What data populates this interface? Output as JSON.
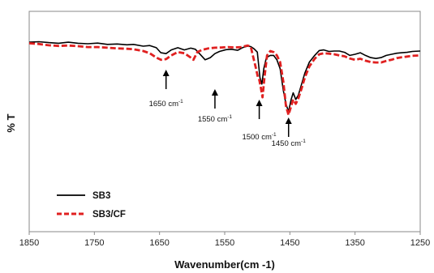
{
  "chart_data": {
    "type": "line",
    "title": "",
    "xlabel": "Wavenumber(cm -1)",
    "ylabel": "% T",
    "xlim": [
      1850,
      1250
    ],
    "x_reversed": true,
    "x_ticks": [
      1850,
      1750,
      1650,
      1550,
      1450,
      1350,
      1250
    ],
    "y_ticks_shown": false,
    "legend_position": "bottom-left",
    "series": [
      {
        "name": "SB3",
        "color": "#000000",
        "style": "solid",
        "points": [
          [
            1850,
            0.86
          ],
          [
            1835,
            0.862
          ],
          [
            1820,
            0.858
          ],
          [
            1805,
            0.855
          ],
          [
            1790,
            0.86
          ],
          [
            1775,
            0.855
          ],
          [
            1760,
            0.853
          ],
          [
            1745,
            0.856
          ],
          [
            1730,
            0.85
          ],
          [
            1715,
            0.852
          ],
          [
            1700,
            0.848
          ],
          [
            1690,
            0.85
          ],
          [
            1675,
            0.842
          ],
          [
            1665,
            0.845
          ],
          [
            1655,
            0.835
          ],
          [
            1648,
            0.812
          ],
          [
            1640,
            0.808
          ],
          [
            1632,
            0.825
          ],
          [
            1622,
            0.835
          ],
          [
            1612,
            0.825
          ],
          [
            1602,
            0.833
          ],
          [
            1595,
            0.828
          ],
          [
            1588,
            0.806
          ],
          [
            1580,
            0.78
          ],
          [
            1572,
            0.79
          ],
          [
            1565,
            0.808
          ],
          [
            1558,
            0.818
          ],
          [
            1548,
            0.826
          ],
          [
            1540,
            0.828
          ],
          [
            1530,
            0.823
          ],
          [
            1522,
            0.836
          ],
          [
            1515,
            0.842
          ],
          [
            1510,
            0.84
          ],
          [
            1505,
            0.83
          ],
          [
            1500,
            0.815
          ],
          [
            1496,
            0.7
          ],
          [
            1493,
            0.67
          ],
          [
            1490,
            0.74
          ],
          [
            1486,
            0.79
          ],
          [
            1480,
            0.8
          ],
          [
            1475,
            0.8
          ],
          [
            1470,
            0.78
          ],
          [
            1465,
            0.74
          ],
          [
            1460,
            0.64
          ],
          [
            1456,
            0.58
          ],
          [
            1452,
            0.545
          ],
          [
            1448,
            0.6
          ],
          [
            1445,
            0.63
          ],
          [
            1441,
            0.6
          ],
          [
            1437,
            0.62
          ],
          [
            1432,
            0.67
          ],
          [
            1427,
            0.72
          ],
          [
            1420,
            0.77
          ],
          [
            1412,
            0.8
          ],
          [
            1405,
            0.822
          ],
          [
            1398,
            0.825
          ],
          [
            1390,
            0.818
          ],
          [
            1382,
            0.82
          ],
          [
            1374,
            0.82
          ],
          [
            1366,
            0.814
          ],
          [
            1358,
            0.8
          ],
          [
            1350,
            0.805
          ],
          [
            1342,
            0.812
          ],
          [
            1334,
            0.8
          ],
          [
            1326,
            0.79
          ],
          [
            1318,
            0.786
          ],
          [
            1310,
            0.79
          ],
          [
            1302,
            0.8
          ],
          [
            1294,
            0.805
          ],
          [
            1286,
            0.81
          ],
          [
            1278,
            0.812
          ],
          [
            1270,
            0.814
          ],
          [
            1262,
            0.818
          ],
          [
            1250,
            0.82
          ]
        ]
      },
      {
        "name": "SB3/CF",
        "color": "#e02020",
        "style": "dashed",
        "points": [
          [
            1850,
            0.855
          ],
          [
            1835,
            0.852
          ],
          [
            1820,
            0.846
          ],
          [
            1805,
            0.843
          ],
          [
            1790,
            0.845
          ],
          [
            1775,
            0.842
          ],
          [
            1760,
            0.838
          ],
          [
            1745,
            0.838
          ],
          [
            1730,
            0.835
          ],
          [
            1715,
            0.832
          ],
          [
            1700,
            0.83
          ],
          [
            1690,
            0.828
          ],
          [
            1675,
            0.82
          ],
          [
            1665,
            0.81
          ],
          [
            1655,
            0.79
          ],
          [
            1648,
            0.78
          ],
          [
            1640,
            0.783
          ],
          [
            1632,
            0.8
          ],
          [
            1622,
            0.815
          ],
          [
            1612,
            0.81
          ],
          [
            1602,
            0.79
          ],
          [
            1598,
            0.78
          ],
          [
            1592,
            0.815
          ],
          [
            1585,
            0.825
          ],
          [
            1575,
            0.832
          ],
          [
            1565,
            0.835
          ],
          [
            1555,
            0.836
          ],
          [
            1545,
            0.838
          ],
          [
            1535,
            0.836
          ],
          [
            1525,
            0.838
          ],
          [
            1515,
            0.845
          ],
          [
            1510,
            0.84
          ],
          [
            1506,
            0.79
          ],
          [
            1502,
            0.74
          ],
          [
            1499,
            0.7
          ],
          [
            1497,
            0.69
          ],
          [
            1495,
            0.66
          ],
          [
            1492,
            0.61
          ],
          [
            1489,
            0.7
          ],
          [
            1485,
            0.8
          ],
          [
            1480,
            0.82
          ],
          [
            1475,
            0.815
          ],
          [
            1470,
            0.8
          ],
          [
            1465,
            0.77
          ],
          [
            1460,
            0.68
          ],
          [
            1456,
            0.57
          ],
          [
            1452,
            0.53
          ],
          [
            1449,
            0.56
          ],
          [
            1445,
            0.6
          ],
          [
            1441,
            0.58
          ],
          [
            1437,
            0.605
          ],
          [
            1432,
            0.65
          ],
          [
            1427,
            0.7
          ],
          [
            1420,
            0.75
          ],
          [
            1412,
            0.785
          ],
          [
            1405,
            0.805
          ],
          [
            1398,
            0.81
          ],
          [
            1390,
            0.808
          ],
          [
            1382,
            0.805
          ],
          [
            1374,
            0.8
          ],
          [
            1366,
            0.796
          ],
          [
            1358,
            0.786
          ],
          [
            1350,
            0.78
          ],
          [
            1342,
            0.785
          ],
          [
            1334,
            0.776
          ],
          [
            1326,
            0.77
          ],
          [
            1318,
            0.768
          ],
          [
            1310,
            0.768
          ],
          [
            1302,
            0.775
          ],
          [
            1294,
            0.78
          ],
          [
            1286,
            0.788
          ],
          [
            1278,
            0.792
          ],
          [
            1270,
            0.795
          ],
          [
            1262,
            0.798
          ],
          [
            1250,
            0.8
          ]
        ]
      }
    ],
    "annotations": [
      {
        "base": "1650 cm",
        "sup": "-1",
        "x": 1640
      },
      {
        "base": "1550 cm",
        "sup": "-1",
        "x": 1565
      },
      {
        "base": "1500 cm",
        "sup": "-1",
        "x": 1497
      },
      {
        "base": "1450 cm",
        "sup": "-1",
        "x": 1452
      }
    ]
  }
}
